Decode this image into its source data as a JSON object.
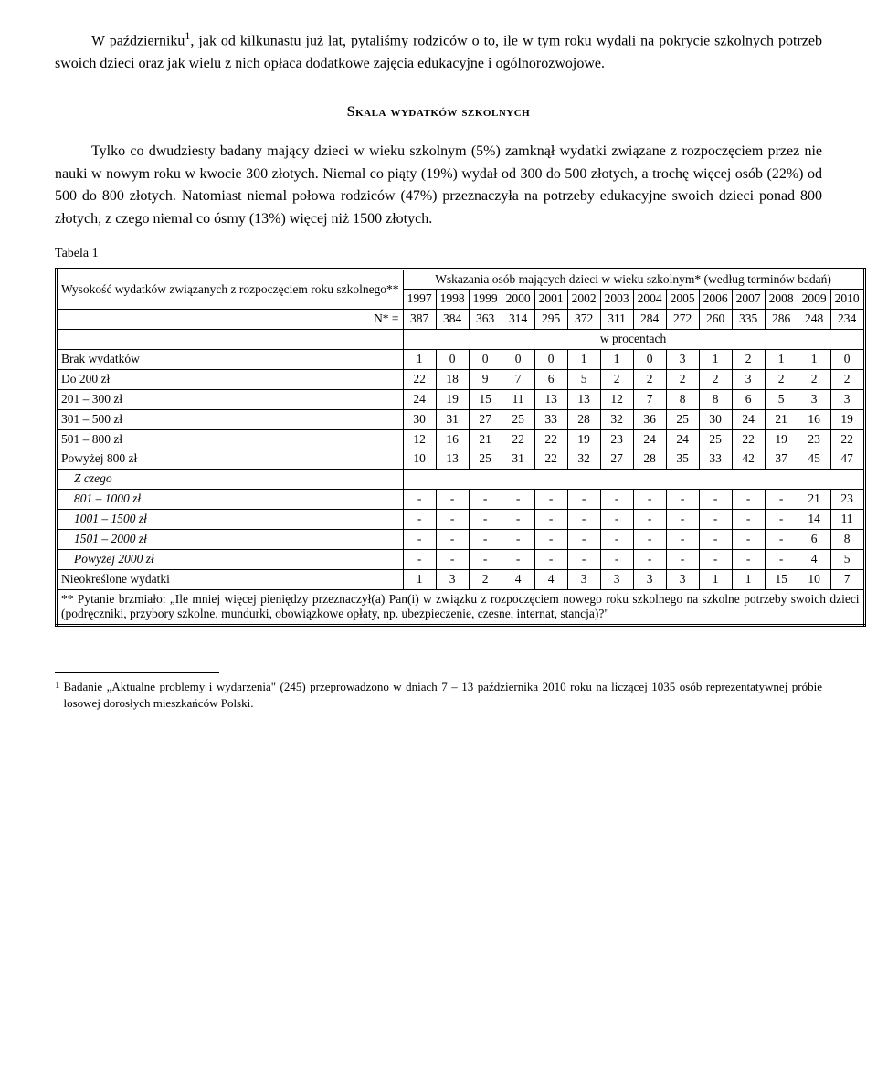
{
  "paragraphs": {
    "p1_pre": "W październiku",
    "p1_sup": "1",
    "p1_post": ", jak od kilkunastu już lat, pytaliśmy rodziców o to, ile w tym roku wydali na pokrycie szkolnych potrzeb swoich dzieci oraz jak wielu z nich opłaca dodatkowe zajęcia edukacyjne i ogólnorozwojowe.",
    "heading": "Skala wydatków szkolnych",
    "p2": "Tylko co dwudziesty badany mający dzieci w wieku szkolnym (5%) zamknął wydatki związane z rozpoczęciem przez nie nauki w nowym roku w kwocie 300 złotych. Niemal co piąty (19%) wydał od 300 do 500 złotych, a trochę więcej osób (22%) od 500 do 800 złotych. Natomiast niemal połowa rodziców (47%) przeznaczyła na potrzeby edukacyjne swoich dzieci ponad 800  złotych, z czego niemal co ósmy (13%) więcej niż 1500 złotych."
  },
  "table": {
    "caption": "Tabela 1",
    "stub_header": "Wysokość wydatków związanych z rozpoczęciem roku szkolnego**",
    "n_label": "N* =",
    "spanner": "Wskazania osób mających dzieci w wieku szkolnym* (według terminów badań)",
    "years": [
      "1997",
      "1998",
      "1999",
      "2000",
      "2001",
      "2002",
      "2003",
      "2004",
      "2005",
      "2006",
      "2007",
      "2008",
      "2009",
      "2010"
    ],
    "n_values": [
      "387",
      "384",
      "363",
      "314",
      "295",
      "372",
      "311",
      "284",
      "272",
      "260",
      "335",
      "286",
      "248",
      "234"
    ],
    "unit_label": "w procentach",
    "rows": [
      {
        "label": "Brak wydatków",
        "cells": [
          "1",
          "0",
          "0",
          "0",
          "0",
          "1",
          "1",
          "0",
          "3",
          "1",
          "2",
          "1",
          "1",
          "0"
        ]
      },
      {
        "label": "Do 200 zł",
        "cells": [
          "22",
          "18",
          "9",
          "7",
          "6",
          "5",
          "2",
          "2",
          "2",
          "2",
          "3",
          "2",
          "2",
          "2"
        ]
      },
      {
        "label": "201 – 300 zł",
        "cells": [
          "24",
          "19",
          "15",
          "11",
          "13",
          "13",
          "12",
          "7",
          "8",
          "8",
          "6",
          "5",
          "3",
          "3"
        ]
      },
      {
        "label": "301 – 500 zł",
        "cells": [
          "30",
          "31",
          "27",
          "25",
          "33",
          "28",
          "32",
          "36",
          "25",
          "30",
          "24",
          "21",
          "16",
          "19"
        ]
      },
      {
        "label": "501 – 800 zł",
        "cells": [
          "12",
          "16",
          "21",
          "22",
          "22",
          "19",
          "23",
          "24",
          "24",
          "25",
          "22",
          "19",
          "23",
          "22"
        ]
      },
      {
        "label": "Powyżej 800 zł",
        "cells": [
          "10",
          "13",
          "25",
          "31",
          "22",
          "32",
          "27",
          "28",
          "35",
          "33",
          "42",
          "37",
          "45",
          "47"
        ]
      }
    ],
    "zczego_label": "Z czego",
    "sub_rows": [
      {
        "label": "801 – 1000 zł",
        "cells": [
          "-",
          "-",
          "-",
          "-",
          "-",
          "-",
          "-",
          "-",
          "-",
          "-",
          "-",
          "-",
          "21",
          "23"
        ]
      },
      {
        "label": "1001 – 1500 zł",
        "cells": [
          "-",
          "-",
          "-",
          "-",
          "-",
          "-",
          "-",
          "-",
          "-",
          "-",
          "-",
          "-",
          "14",
          "11"
        ]
      },
      {
        "label": "1501 – 2000 zł",
        "cells": [
          "-",
          "-",
          "-",
          "-",
          "-",
          "-",
          "-",
          "-",
          "-",
          "-",
          "-",
          "-",
          "6",
          "8"
        ]
      },
      {
        "label": "Powyżej 2000 zł",
        "cells": [
          "-",
          "-",
          "-",
          "-",
          "-",
          "-",
          "-",
          "-",
          "-",
          "-",
          "-",
          "-",
          "4",
          "5"
        ]
      }
    ],
    "last_row": {
      "label": "Nieokreślone wydatki",
      "cells": [
        "1",
        "3",
        "2",
        "4",
        "4",
        "3",
        "3",
        "3",
        "3",
        "1",
        "1",
        "15",
        "10",
        "7"
      ]
    },
    "footnote": "** Pytanie brzmiało: „Ile mniej więcej pieniędzy przeznaczył(a) Pan(i) w związku z rozpoczęciem nowego roku szkolnego na szkolne potrzeby swoich dzieci (podręczniki, przybory szkolne, mundurki, obowiązkowe opłaty, np. ubezpieczenie, czesne, internat, stancja)?\""
  },
  "footnote": {
    "num": "1",
    "text": "Badanie „Aktualne problemy i wydarzenia\" (245) przeprowadzono w dniach 7 – 13 października 2010 roku na liczącej 1035 osób reprezentatywnej próbie losowej dorosłych mieszkańców Polski."
  }
}
